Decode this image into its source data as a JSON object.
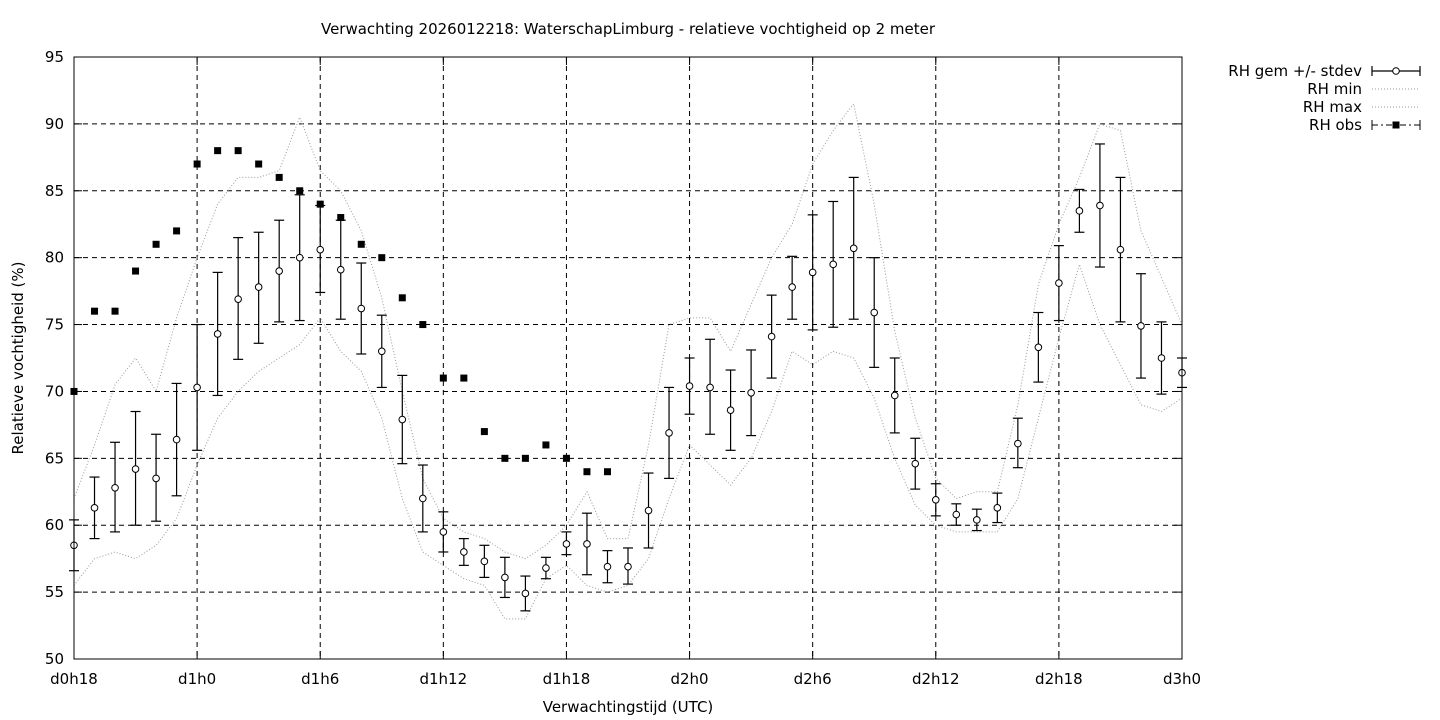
{
  "chart_data": {
    "type": "line",
    "title": "Verwachting 2026012218: WaterschapLimburg - relatieve vochtigheid op 2 meter",
    "xlabel": "Verwachtingstijd (UTC)",
    "ylabel": "Relatieve vochtigheid (%)",
    "xlim": [
      18,
      72
    ],
    "ylim": [
      50,
      95
    ],
    "grid": true,
    "legend_position": "outside top-right",
    "x_ticks": [
      {
        "x": 18,
        "label": "d0h18"
      },
      {
        "x": 24,
        "label": "d1h0"
      },
      {
        "x": 30,
        "label": "d1h6"
      },
      {
        "x": 36,
        "label": "d1h12"
      },
      {
        "x": 42,
        "label": "d1h18"
      },
      {
        "x": 48,
        "label": "d2h0"
      },
      {
        "x": 54,
        "label": "d2h6"
      },
      {
        "x": 60,
        "label": "d2h12"
      },
      {
        "x": 66,
        "label": "d2h18"
      },
      {
        "x": 72,
        "label": "d3h0"
      }
    ],
    "y_ticks": [
      50,
      55,
      60,
      65,
      70,
      75,
      80,
      85,
      90,
      95
    ],
    "series": [
      {
        "name": "RH gem +/- stdev",
        "style": "errorbars",
        "x": [
          18,
          19,
          20,
          21,
          22,
          23,
          24,
          25,
          26,
          27,
          28,
          29,
          30,
          31,
          32,
          33,
          34,
          35,
          36,
          37,
          38,
          39,
          40,
          41,
          42,
          43,
          44,
          45,
          46,
          47,
          48,
          49,
          50,
          51,
          52,
          53,
          54,
          55,
          56,
          57,
          58,
          59,
          60,
          61,
          62,
          63,
          64,
          65,
          66,
          67,
          68,
          69,
          70,
          71,
          72
        ],
        "y": [
          58.5,
          61.3,
          62.8,
          64.2,
          63.5,
          66.4,
          70.3,
          74.3,
          76.9,
          77.8,
          79.0,
          80.0,
          80.6,
          79.1,
          76.2,
          73.0,
          67.9,
          62.0,
          59.5,
          58.0,
          57.3,
          56.1,
          54.9,
          56.8,
          58.6,
          58.6,
          56.9,
          56.9,
          61.1,
          66.9,
          70.4,
          70.3,
          68.6,
          69.9,
          74.1,
          77.8,
          78.9,
          79.5,
          80.7,
          75.9,
          69.7,
          64.6,
          61.9,
          60.8,
          60.4,
          61.3,
          66.1,
          73.3,
          78.1,
          83.5,
          83.9,
          80.6,
          74.9,
          72.5,
          71.4
        ],
        "err_low": [
          56.6,
          59.0,
          59.5,
          60.0,
          60.3,
          62.2,
          65.6,
          69.7,
          72.4,
          73.6,
          75.2,
          75.3,
          77.4,
          75.4,
          72.8,
          70.3,
          64.6,
          59.5,
          58.0,
          57.0,
          56.1,
          54.6,
          53.6,
          56.0,
          57.8,
          56.3,
          55.7,
          55.6,
          58.3,
          63.5,
          68.3,
          66.8,
          65.6,
          66.7,
          71.0,
          75.4,
          74.6,
          74.8,
          75.4,
          71.8,
          66.9,
          62.7,
          60.7,
          60.0,
          59.6,
          60.2,
          64.3,
          70.7,
          75.3,
          81.9,
          79.3,
          75.2,
          71.0,
          69.8,
          70.3
        ],
        "err_high": [
          60.4,
          63.6,
          66.2,
          68.5,
          66.8,
          70.6,
          75.0,
          78.9,
          81.5,
          81.9,
          82.8,
          84.7,
          83.9,
          82.8,
          79.6,
          75.7,
          71.2,
          64.5,
          61.0,
          59.0,
          58.5,
          57.6,
          56.2,
          57.6,
          59.5,
          60.9,
          58.1,
          58.3,
          63.9,
          70.3,
          72.5,
          73.9,
          71.6,
          73.1,
          77.2,
          80.1,
          83.2,
          84.2,
          86.0,
          80.0,
          72.5,
          66.5,
          63.1,
          61.6,
          61.2,
          62.4,
          68.0,
          75.9,
          80.9,
          85.1,
          88.5,
          86.0,
          78.8,
          75.2,
          72.5
        ]
      },
      {
        "name": "RH min",
        "style": "dotted",
        "x": [
          18,
          19,
          20,
          21,
          22,
          23,
          24,
          25,
          26,
          27,
          28,
          29,
          30,
          31,
          32,
          33,
          34,
          35,
          36,
          37,
          38,
          39,
          40,
          41,
          42,
          43,
          44,
          45,
          46,
          47,
          48,
          49,
          50,
          51,
          52,
          53,
          54,
          55,
          56,
          57,
          58,
          59,
          60,
          61,
          62,
          63,
          64,
          65,
          66,
          67,
          68,
          69,
          70,
          71,
          72
        ],
        "y": [
          55.5,
          57.5,
          58.0,
          57.5,
          58.5,
          60.5,
          64.5,
          68.0,
          70.0,
          71.5,
          72.5,
          73.5,
          75.5,
          73.0,
          71.5,
          68.0,
          62.0,
          58.0,
          57.0,
          56.0,
          55.5,
          53.0,
          53.0,
          56.0,
          57.0,
          55.5,
          55.0,
          55.5,
          57.5,
          62.0,
          66.0,
          64.5,
          63.0,
          65.0,
          68.5,
          73.0,
          72.0,
          73.0,
          72.5,
          69.5,
          65.0,
          61.5,
          60.0,
          59.5,
          59.5,
          59.5,
          62.0,
          68.0,
          74.0,
          79.5,
          75.0,
          72.0,
          69.0,
          68.5,
          69.5
        ]
      },
      {
        "name": "RH max",
        "style": "dotted",
        "x": [
          18,
          19,
          20,
          21,
          22,
          23,
          24,
          25,
          26,
          27,
          28,
          29,
          30,
          31,
          32,
          33,
          34,
          35,
          36,
          37,
          38,
          39,
          40,
          41,
          42,
          43,
          44,
          45,
          46,
          47,
          48,
          49,
          50,
          51,
          52,
          53,
          54,
          55,
          56,
          57,
          58,
          59,
          60,
          61,
          62,
          63,
          64,
          65,
          66,
          67,
          68,
          69,
          70,
          71,
          72
        ],
        "y": [
          62.0,
          66.0,
          70.5,
          72.5,
          70.0,
          75.5,
          80.0,
          84.0,
          86.0,
          86.0,
          86.5,
          90.5,
          86.5,
          85.0,
          82.0,
          77.0,
          70.0,
          63.5,
          60.5,
          59.5,
          59.0,
          58.0,
          57.5,
          58.5,
          60.0,
          62.5,
          59.0,
          59.0,
          66.0,
          75.0,
          75.5,
          75.5,
          73.0,
          76.5,
          80.0,
          82.5,
          87.0,
          89.5,
          91.5,
          84.0,
          74.5,
          68.0,
          63.5,
          62.0,
          62.5,
          62.5,
          69.0,
          78.0,
          82.5,
          86.0,
          90.0,
          89.5,
          82.0,
          78.5,
          75.0
        ]
      },
      {
        "name": "RH obs",
        "style": "points",
        "x": [
          18,
          19,
          20,
          21,
          22,
          23,
          24,
          25,
          26,
          27,
          28,
          29,
          30,
          31,
          32,
          33,
          34,
          35,
          36,
          37,
          38,
          39,
          40,
          41,
          42,
          43,
          44
        ],
        "y": [
          70,
          76,
          76,
          79,
          81,
          82,
          87,
          88,
          88,
          87,
          86,
          85,
          84,
          83,
          81,
          80,
          77,
          75,
          71,
          71,
          67,
          65,
          65,
          66,
          65,
          64,
          64
        ]
      }
    ]
  }
}
